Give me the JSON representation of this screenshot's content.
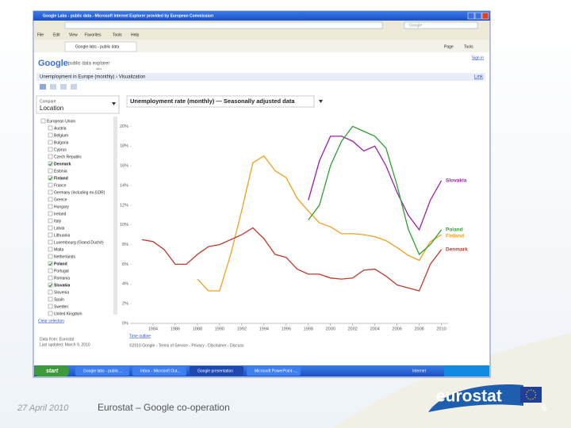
{
  "browser": {
    "window_title": "Google Labs - public data - Microsoft Internet Explorer provided by European Commission",
    "menu": [
      "File",
      "Edit",
      "View",
      "Favorites",
      "Tools",
      "Help"
    ],
    "tab": "Google labs - public data",
    "search_placeholder": "Google",
    "page_menu": "Page",
    "tools_menu": "Tools"
  },
  "page": {
    "logo": "Google",
    "product": "public data explorer",
    "labs": "labs",
    "sign_in": "Sign in",
    "breadcrumb": "Unemployment in Europe (monthly) › Visualization",
    "link": "Link",
    "compare": "Compare",
    "compare_by": "Location",
    "chart_header": "Unemployment rate (monthly) — Seasonally adjusted data",
    "locations": [
      {
        "label": "European Union",
        "checked": false
      },
      {
        "label": "Austria",
        "checked": false
      },
      {
        "label": "Belgium",
        "checked": false
      },
      {
        "label": "Bulgaria",
        "checked": false
      },
      {
        "label": "Cyprus",
        "checked": false
      },
      {
        "label": "Czech Republic",
        "checked": false
      },
      {
        "label": "Denmark",
        "checked": true
      },
      {
        "label": "Estonia",
        "checked": false
      },
      {
        "label": "Finland",
        "checked": true
      },
      {
        "label": "France",
        "checked": false
      },
      {
        "label": "Germany (including ex-GDR)",
        "checked": false
      },
      {
        "label": "Greece",
        "checked": false
      },
      {
        "label": "Hungary",
        "checked": false
      },
      {
        "label": "Ireland",
        "checked": false
      },
      {
        "label": "Italy",
        "checked": false
      },
      {
        "label": "Latvia",
        "checked": false
      },
      {
        "label": "Lithuania",
        "checked": false
      },
      {
        "label": "Luxembourg (Grand-Duché)",
        "checked": false
      },
      {
        "label": "Malta",
        "checked": false
      },
      {
        "label": "Netherlands",
        "checked": false
      },
      {
        "label": "Poland",
        "checked": true
      },
      {
        "label": "Portugal",
        "checked": false
      },
      {
        "label": "Romania",
        "checked": false
      },
      {
        "label": "Slovakia",
        "checked": true
      },
      {
        "label": "Slovenia",
        "checked": false
      },
      {
        "label": "Spain",
        "checked": false
      },
      {
        "label": "Sweden",
        "checked": false
      },
      {
        "label": "United Kingdom",
        "checked": false
      }
    ],
    "clear_selection": "Clear selection",
    "data_from": "Data from: Eurostat",
    "last_updated": "Last updated: March 9, 2010",
    "time_outline": "Time outline",
    "footer": "©2010 Google - Terms of Service - Privacy - Disclaimer - Discuss"
  },
  "chart_data": {
    "type": "line",
    "x": [
      1983,
      1984,
      1985,
      1986,
      1987,
      1988,
      1989,
      1990,
      1991,
      1992,
      1993,
      1994,
      1995,
      1996,
      1997,
      1998,
      1999,
      2000,
      2001,
      2002,
      2003,
      2004,
      2005,
      2006,
      2007,
      2008,
      2009,
      2010
    ],
    "series": [
      {
        "name": "Slovakia",
        "color": "#9c1fa8",
        "values": [
          null,
          null,
          null,
          null,
          null,
          null,
          null,
          null,
          null,
          null,
          null,
          null,
          null,
          null,
          null,
          12.5,
          16.5,
          19,
          19,
          18.5,
          17.5,
          18,
          16,
          13.3,
          11,
          9.5,
          12.5,
          14.5
        ]
      },
      {
        "name": "Finland",
        "color": "#f0a020",
        "values": [
          null,
          null,
          null,
          null,
          null,
          4.5,
          3.3,
          3.3,
          7,
          11.5,
          16.3,
          17,
          15.5,
          14.8,
          12.7,
          11.4,
          10.2,
          9.8,
          9.1,
          9.1,
          9,
          8.8,
          8.4,
          7.7,
          6.9,
          6.4,
          8.3,
          9
        ]
      },
      {
        "name": "Poland",
        "color": "#2ca02c",
        "values": [
          null,
          null,
          null,
          null,
          null,
          null,
          null,
          null,
          null,
          null,
          null,
          null,
          null,
          null,
          null,
          10.5,
          12,
          16,
          18.5,
          20,
          19.5,
          19,
          17.8,
          14,
          9.6,
          7,
          8,
          9.5
        ]
      },
      {
        "name": "Denmark",
        "color": "#c0392b",
        "values": [
          8.5,
          8.3,
          7.5,
          6,
          6,
          7,
          7.8,
          8,
          8.5,
          9,
          9.7,
          8.6,
          7,
          6.7,
          5.5,
          5,
          5,
          4.6,
          4.5,
          4.6,
          5.4,
          5.5,
          4.8,
          3.9,
          3.6,
          3.3,
          6,
          7.5
        ]
      }
    ],
    "xlim": [
      1982,
      2010.6
    ],
    "xticks": [
      1984,
      1986,
      1988,
      1990,
      1992,
      1994,
      1996,
      1998,
      2000,
      2002,
      2004,
      2006,
      2008,
      2010
    ],
    "ylim": [
      0,
      21
    ],
    "yticks": [
      {
        "value": 0,
        "label": "0%"
      },
      {
        "value": 2,
        "label": "2%"
      },
      {
        "value": 4,
        "label": "4%"
      },
      {
        "value": 6,
        "label": "6%"
      },
      {
        "value": 8,
        "label": "8%"
      },
      {
        "value": 10,
        "label": "10%"
      },
      {
        "value": 12,
        "label": "12%"
      },
      {
        "value": 14,
        "label": "14%"
      },
      {
        "value": 16,
        "label": "16%"
      },
      {
        "value": 18,
        "label": "18%"
      },
      {
        "value": 20,
        "label": "20%"
      }
    ],
    "grid": false
  },
  "taskbar": {
    "start": "start",
    "items": [
      "Google labs - public ...",
      "Inbox - Microsoft Out...",
      "Google presentation",
      "Microsoft PowerPoint -..."
    ],
    "zone": "Internet"
  },
  "slide": {
    "date": "27 April 2010",
    "title": "Eurostat – Google co-operation",
    "logo": "eurostat",
    "page_number": "6"
  }
}
